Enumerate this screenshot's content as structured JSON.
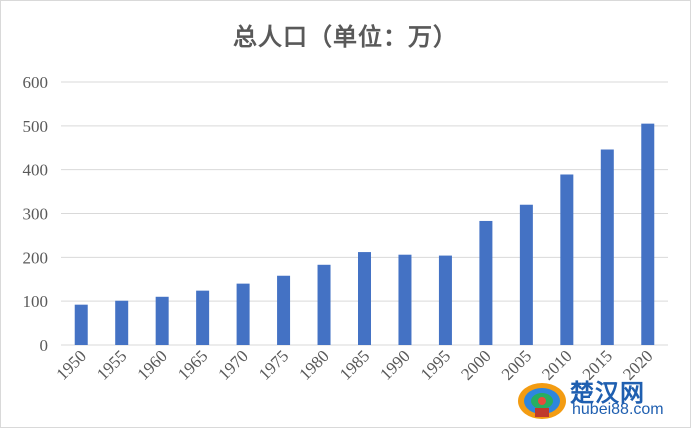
{
  "chart_data": {
    "type": "bar",
    "title": "总人口（单位：万）",
    "categories": [
      "1950",
      "1955",
      "1960",
      "1965",
      "1970",
      "1975",
      "1980",
      "1985",
      "1990",
      "1995",
      "2000",
      "2005",
      "2010",
      "2015",
      "2020"
    ],
    "series": [
      {
        "values": [
          92,
          101,
          110,
          124,
          140,
          158,
          183,
          212,
          206,
          204,
          283,
          320,
          389,
          446,
          505
        ]
      }
    ],
    "ylim": [
      0,
      600
    ],
    "yticks": [
      0,
      100,
      200,
      300,
      400,
      500,
      600
    ],
    "grid": true,
    "bar_color": "#4472c4",
    "grid_color": "#d9d9d9",
    "text_color": "#595959"
  },
  "watermark": {
    "name": "楚汉网",
    "url": "hubei88.com"
  }
}
